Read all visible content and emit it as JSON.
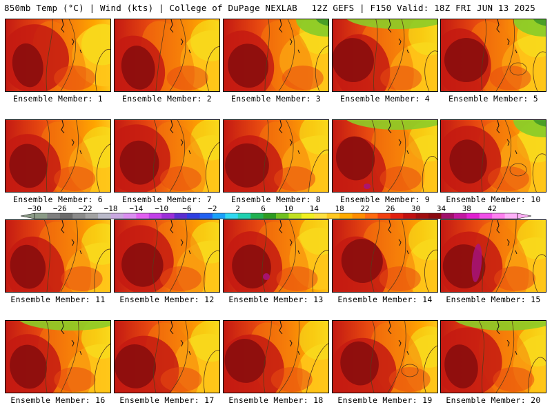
{
  "header": {
    "left": "850mb Temp (°C) | Wind (kts) | College of DuPage NEXLAB",
    "right": "12Z GEFS | F150 Valid: 18Z FRI JUN 13 2025"
  },
  "panels": [
    {
      "label": "Ensemble Member: 1",
      "tint": "none"
    },
    {
      "label": "Ensemble Member: 2",
      "tint": "none"
    },
    {
      "label": "Ensemble Member: 3",
      "tint": "top-right-green"
    },
    {
      "label": "Ensemble Member: 4",
      "tint": "top-green"
    },
    {
      "label": "Ensemble Member: 5",
      "tint": "top-right-green"
    },
    {
      "label": "Ensemble Member: 6",
      "tint": "none"
    },
    {
      "label": "Ensemble Member: 7",
      "tint": "none"
    },
    {
      "label": "Ensemble Member: 8",
      "tint": "none"
    },
    {
      "label": "Ensemble Member: 9",
      "tint": "top-green"
    },
    {
      "label": "Ensemble Member: 10",
      "tint": "top-right-green"
    },
    {
      "label": "Ensemble Member: 11",
      "tint": "none"
    },
    {
      "label": "Ensemble Member: 12",
      "tint": "none"
    },
    {
      "label": "Ensemble Member: 13",
      "tint": "none"
    },
    {
      "label": "Ensemble Member: 14",
      "tint": "none"
    },
    {
      "label": "Ensemble Member: 15",
      "tint": "none"
    },
    {
      "label": "Ensemble Member: 16",
      "tint": "top-green"
    },
    {
      "label": "Ensemble Member: 17",
      "tint": "none"
    },
    {
      "label": "Ensemble Member: 18",
      "tint": "none"
    },
    {
      "label": "Ensemble Member: 19",
      "tint": "none"
    },
    {
      "label": "Ensemble Member: 20",
      "tint": "top-green"
    }
  ],
  "colorbar": {
    "ticks": [
      "−30",
      "−26",
      "−22",
      "−18",
      "−14",
      "−10",
      "−6",
      "−2",
      "2",
      "6",
      "10",
      "14",
      "18",
      "22",
      "26",
      "30",
      "34",
      "38",
      "42"
    ],
    "colors": [
      "#8a9a86",
      "#7f7f7f",
      "#6b6b6b",
      "#8a8a8a",
      "#a2a2a2",
      "#b9b9c9",
      "#c8a8e0",
      "#d98ef0",
      "#e060f0",
      "#c040e8",
      "#9a2ed8",
      "#5a2ed0",
      "#2f3fe0",
      "#2060f0",
      "#1aa0f8",
      "#30d8f0",
      "#20d0b0",
      "#20b050",
      "#2d9a20",
      "#70c020",
      "#c0e020",
      "#f0f020",
      "#ffe040",
      "#ffc820",
      "#ffaa00",
      "#ff8c00",
      "#ff6a10",
      "#f04010",
      "#e02010",
      "#c01010",
      "#a00e10",
      "#8a0a10",
      "#a0106a",
      "#c018a0",
      "#e020d0",
      "#f050e8",
      "#ff80f0",
      "#ffb0f8"
    ]
  },
  "colors": {
    "deep_red": "#8a0d0d",
    "red": "#c41a12",
    "orange_red": "#e84a10",
    "orange": "#f57d0a",
    "amber": "#ffa500",
    "gold": "#ffc61a",
    "yellow": "#f5e51e",
    "green": "#8ccc28",
    "dark_green": "#3c9628",
    "magenta": "#a8147a"
  }
}
